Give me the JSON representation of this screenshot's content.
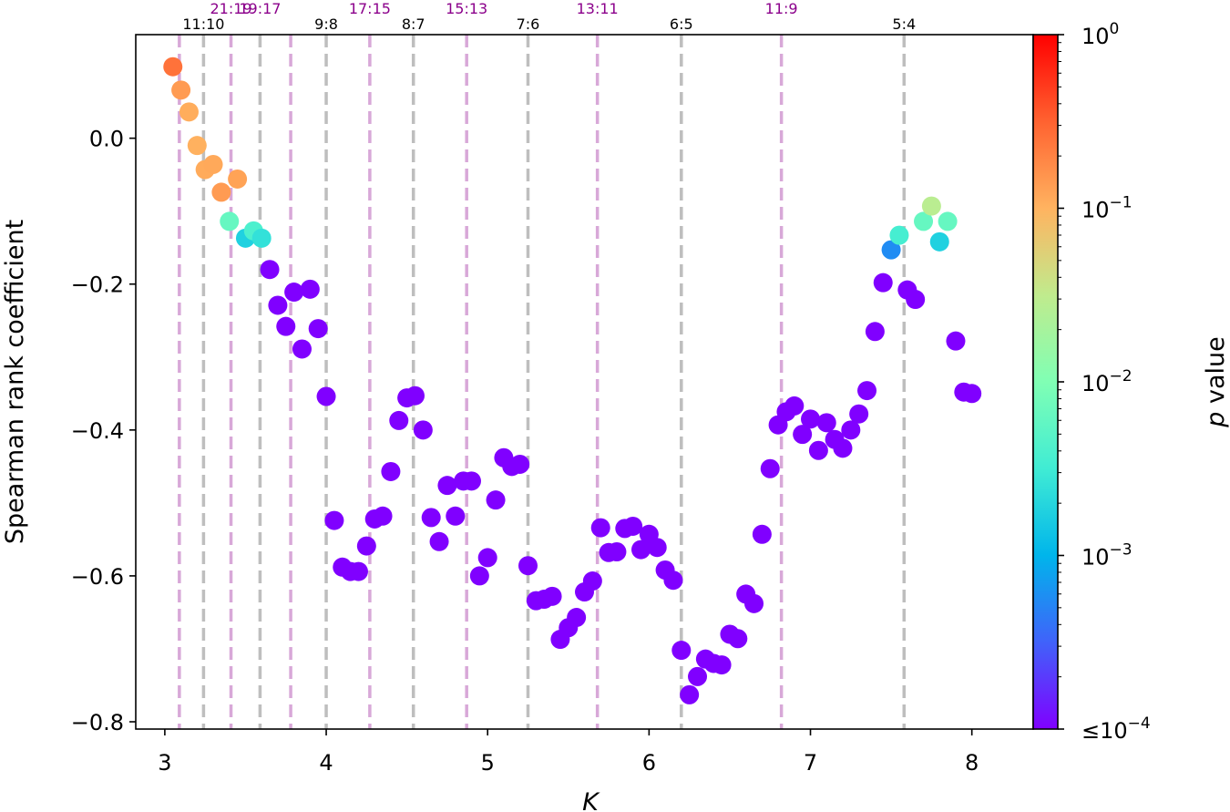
{
  "chart_data": {
    "type": "scatter",
    "xlabel": "K",
    "ylabel": "Spearman rank coefficient",
    "xlim": [
      2.82,
      8.38
    ],
    "ylim": [
      -0.81,
      0.142
    ],
    "xticks": [
      "3",
      "4",
      "5",
      "6",
      "7",
      "8"
    ],
    "yticks": [
      "0.0",
      "−0.2",
      "−0.4",
      "−0.6",
      "−0.8"
    ],
    "colorbar": {
      "label": "p value",
      "colormap": "rainbow",
      "log_range": [
        -4,
        0
      ],
      "ticks": [
        "10",
        "10",
        "10",
        "10",
        "≤10"
      ],
      "tick_exponents": [
        "0",
        "−1",
        "−2",
        "−3",
        "−4"
      ],
      "tick_values_log10": [
        0,
        -1,
        -2,
        -3,
        -4
      ]
    },
    "resonances": [
      {
        "label": "11:10",
        "k": 3.24,
        "color": "#bebebe",
        "row": "low"
      },
      {
        "label": "21:19",
        "k": 3.41,
        "color": "#d8a8d8",
        "row": "high"
      },
      {
        "label": "19:17",
        "k": 3.59,
        "color": "#bebebe",
        "row": "high"
      },
      {
        "label": "9:8",
        "k": 4.0,
        "color": "#bebebe",
        "row": "low"
      },
      {
        "label": "17:15",
        "k": 4.27,
        "color": "#d8a8d8",
        "row": "high"
      },
      {
        "label": "8:7",
        "k": 4.54,
        "color": "#bebebe",
        "row": "low"
      },
      {
        "label": "15:13",
        "k": 4.87,
        "color": "#d8a8d8",
        "row": "high"
      },
      {
        "label": "7:6",
        "k": 5.25,
        "color": "#bebebe",
        "row": "low"
      },
      {
        "label": "13:11",
        "k": 5.68,
        "color": "#d8a8d8",
        "row": "high"
      },
      {
        "label": "6:5",
        "k": 6.2,
        "color": "#bebebe",
        "row": "low"
      },
      {
        "label": "11:9",
        "k": 6.82,
        "color": "#d8a8d8",
        "row": "high"
      },
      {
        "label": "5:4",
        "k": 7.58,
        "color": "#bebebe",
        "row": "low"
      }
    ],
    "extra_lines": [
      {
        "k": 3.09,
        "color": "#d8a8d8"
      },
      {
        "k": 3.78,
        "color": "#d8a8d8"
      }
    ],
    "points": [
      [
        3.05,
        0.098,
        -0.6
      ],
      [
        3.1,
        0.066,
        -0.85
      ],
      [
        3.15,
        0.036,
        -0.96
      ],
      [
        3.2,
        -0.01,
        -0.99
      ],
      [
        3.25,
        -0.043,
        -0.95
      ],
      [
        3.3,
        -0.036,
        -0.94
      ],
      [
        3.35,
        -0.074,
        -0.85
      ],
      [
        3.45,
        -0.056,
        -0.9
      ],
      [
        3.4,
        -0.114,
        -2.2
      ],
      [
        3.5,
        -0.137,
        -2.75
      ],
      [
        3.55,
        -0.127,
        -2.4
      ],
      [
        3.6,
        -0.137,
        -2.6
      ],
      [
        3.65,
        -0.18,
        -4
      ],
      [
        3.7,
        -0.229,
        -4
      ],
      [
        3.75,
        -0.258,
        -4
      ],
      [
        3.8,
        -0.211,
        -4
      ],
      [
        3.85,
        -0.289,
        -4
      ],
      [
        3.9,
        -0.207,
        -4
      ],
      [
        3.95,
        -0.261,
        -4
      ],
      [
        4.0,
        -0.354,
        -4
      ],
      [
        4.05,
        -0.524,
        -4
      ],
      [
        4.1,
        -0.588,
        -4
      ],
      [
        4.15,
        -0.594,
        -4
      ],
      [
        4.2,
        -0.594,
        -4
      ],
      [
        4.25,
        -0.559,
        -4
      ],
      [
        4.3,
        -0.522,
        -4
      ],
      [
        4.35,
        -0.518,
        -4
      ],
      [
        4.4,
        -0.457,
        -4
      ],
      [
        4.45,
        -0.387,
        -4
      ],
      [
        4.5,
        -0.356,
        -4
      ],
      [
        4.55,
        -0.353,
        -4
      ],
      [
        4.6,
        -0.4,
        -4
      ],
      [
        4.65,
        -0.52,
        -4
      ],
      [
        4.7,
        -0.553,
        -4
      ],
      [
        4.75,
        -0.476,
        -4
      ],
      [
        4.8,
        -0.518,
        -4
      ],
      [
        4.85,
        -0.47,
        -4
      ],
      [
        4.9,
        -0.47,
        -4
      ],
      [
        4.95,
        -0.6,
        -4
      ],
      [
        5.0,
        -0.575,
        -4
      ],
      [
        5.05,
        -0.496,
        -4
      ],
      [
        5.1,
        -0.438,
        -4
      ],
      [
        5.15,
        -0.45,
        -4
      ],
      [
        5.2,
        -0.447,
        -4
      ],
      [
        5.25,
        -0.586,
        -4
      ],
      [
        5.3,
        -0.634,
        -4
      ],
      [
        5.35,
        -0.632,
        -4
      ],
      [
        5.4,
        -0.628,
        -4
      ],
      [
        5.45,
        -0.687,
        -4
      ],
      [
        5.5,
        -0.671,
        -4
      ],
      [
        5.55,
        -0.657,
        -4
      ],
      [
        5.6,
        -0.622,
        -4
      ],
      [
        5.65,
        -0.607,
        -4
      ],
      [
        5.7,
        -0.534,
        -4
      ],
      [
        5.75,
        -0.568,
        -4
      ],
      [
        5.8,
        -0.567,
        -4
      ],
      [
        5.85,
        -0.535,
        -4
      ],
      [
        5.9,
        -0.532,
        -4
      ],
      [
        5.95,
        -0.564,
        -4
      ],
      [
        6.0,
        -0.543,
        -4
      ],
      [
        6.05,
        -0.561,
        -4
      ],
      [
        6.1,
        -0.592,
        -4
      ],
      [
        6.15,
        -0.606,
        -4
      ],
      [
        6.2,
        -0.702,
        -4
      ],
      [
        6.25,
        -0.763,
        -4
      ],
      [
        6.3,
        -0.738,
        -4
      ],
      [
        6.35,
        -0.714,
        -4
      ],
      [
        6.4,
        -0.72,
        -4
      ],
      [
        6.45,
        -0.722,
        -4
      ],
      [
        6.5,
        -0.68,
        -4
      ],
      [
        6.55,
        -0.686,
        -4
      ],
      [
        6.6,
        -0.625,
        -4
      ],
      [
        6.65,
        -0.638,
        -4
      ],
      [
        6.7,
        -0.543,
        -4
      ],
      [
        6.75,
        -0.453,
        -4
      ],
      [
        6.8,
        -0.393,
        -4
      ],
      [
        6.85,
        -0.375,
        -4
      ],
      [
        6.9,
        -0.367,
        -4
      ],
      [
        6.95,
        -0.406,
        -4
      ],
      [
        7.0,
        -0.385,
        -4
      ],
      [
        7.05,
        -0.428,
        -4
      ],
      [
        7.1,
        -0.39,
        -4
      ],
      [
        7.15,
        -0.413,
        -4
      ],
      [
        7.2,
        -0.425,
        -4
      ],
      [
        7.25,
        -0.4,
        -4
      ],
      [
        7.3,
        -0.378,
        -4
      ],
      [
        7.35,
        -0.346,
        -4
      ],
      [
        7.4,
        -0.265,
        -4
      ],
      [
        7.45,
        -0.198,
        -4
      ],
      [
        7.5,
        -0.153,
        -3.25
      ],
      [
        7.55,
        -0.133,
        -2.45
      ],
      [
        7.6,
        -0.208,
        -4
      ],
      [
        7.65,
        -0.221,
        -4
      ],
      [
        7.7,
        -0.114,
        -2.2
      ],
      [
        7.75,
        -0.093,
        -1.55
      ],
      [
        7.8,
        -0.142,
        -2.75
      ],
      [
        7.85,
        -0.114,
        -2.2
      ],
      [
        7.9,
        -0.278,
        -4
      ],
      [
        7.95,
        -0.348,
        -4
      ],
      [
        8.0,
        -0.35,
        -4
      ]
    ]
  }
}
